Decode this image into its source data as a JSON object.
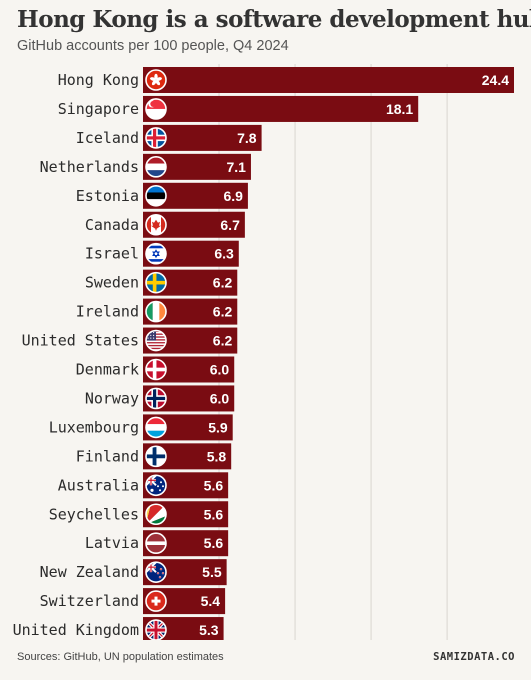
{
  "chart_data": {
    "type": "bar",
    "orientation": "horizontal",
    "title": "Hong Kong is a software development hub",
    "subtitle": "GitHub accounts per 100 people, Q4 2024",
    "categories": [
      "Hong Kong",
      "Singapore",
      "Iceland",
      "Netherlands",
      "Estonia",
      "Canada",
      "Israel",
      "Sweden",
      "Ireland",
      "United States",
      "Denmark",
      "Norway",
      "Luxembourg",
      "Finland",
      "Australia",
      "Seychelles",
      "Latvia",
      "New Zealand",
      "Switzerland",
      "United Kingdom"
    ],
    "values": [
      24.4,
      18.1,
      7.8,
      7.1,
      6.9,
      6.7,
      6.3,
      6.2,
      6.2,
      6.2,
      6.0,
      6.0,
      5.9,
      5.8,
      5.6,
      5.6,
      5.6,
      5.5,
      5.4,
      5.3
    ],
    "value_labels": [
      "24.4",
      "18.1",
      "7.8",
      "7.1",
      "6.9",
      "6.7",
      "6.3",
      "6.2",
      "6.2",
      "6.2",
      "6.0",
      "6.0",
      "5.9",
      "5.8",
      "5.6",
      "5.6",
      "5.6",
      "5.5",
      "5.4",
      "5.3"
    ],
    "flags": [
      "hong-kong-flag-icon",
      "singapore-flag-icon",
      "iceland-flag-icon",
      "netherlands-flag-icon",
      "estonia-flag-icon",
      "canada-flag-icon",
      "israel-flag-icon",
      "sweden-flag-icon",
      "ireland-flag-icon",
      "united-states-flag-icon",
      "denmark-flag-icon",
      "norway-flag-icon",
      "luxembourg-flag-icon",
      "finland-flag-icon",
      "australia-flag-icon",
      "seychelles-flag-icon",
      "latvia-flag-icon",
      "new-zealand-flag-icon",
      "switzerland-flag-icon",
      "united-kingdom-flag-icon"
    ],
    "xlim": [
      0,
      24.4
    ],
    "grid": true,
    "bar_color": "#7a0c12"
  },
  "footer": {
    "source": "Sources: GitHub, UN population estimates",
    "brand": "SAMIZDATA.CO"
  }
}
